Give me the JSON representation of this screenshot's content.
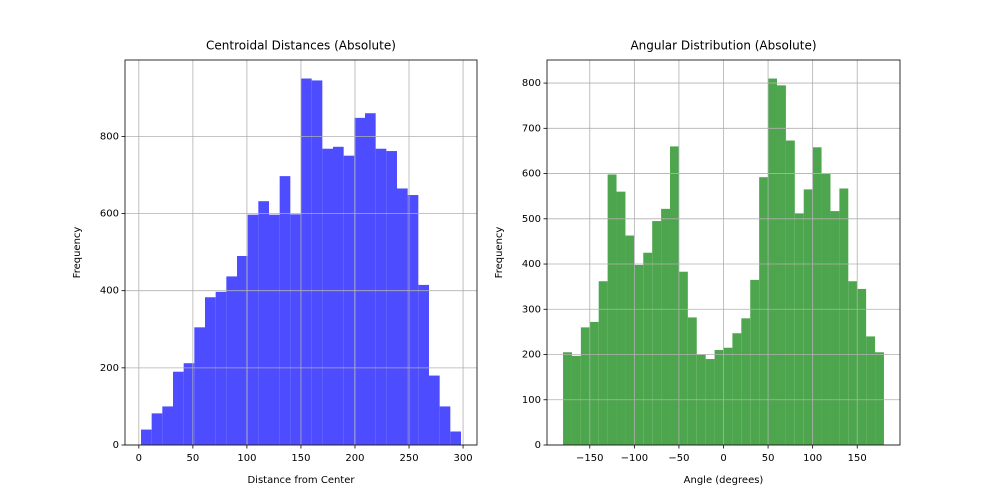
{
  "chart_data": [
    {
      "type": "histogram",
      "title": "Centroidal Distances (Absolute)",
      "xlabel": "Distance from Center",
      "ylabel": "Frequency",
      "bins": [
        2,
        11.87,
        21.74,
        31.61,
        41.48,
        51.35,
        61.22,
        71.09,
        80.96,
        90.83,
        100.7,
        110.57,
        120.44,
        130.31,
        140.18,
        150.05,
        159.92,
        169.79,
        179.66,
        189.53,
        199.4,
        209.27,
        219.14,
        229.01,
        238.88,
        248.75,
        258.62,
        268.49,
        278.36,
        288.23,
        298.1
      ],
      "values": [
        40,
        82,
        100,
        190,
        212,
        305,
        383,
        397,
        437,
        490,
        597,
        632,
        597,
        697,
        598,
        950,
        945,
        768,
        773,
        750,
        848,
        860,
        768,
        762,
        665,
        648,
        415,
        180,
        100,
        35
      ],
      "color": "#4d4dff",
      "xlim": [
        -12.8,
        312.9
      ],
      "ylim": [
        0,
        998
      ],
      "xticks": [
        0,
        50,
        100,
        150,
        200,
        250,
        300
      ],
      "yticks": [
        0,
        200,
        400,
        600,
        800
      ],
      "grid": true
    },
    {
      "type": "histogram",
      "title": "Angular Distribution (Absolute)",
      "xlabel": "Angle (degrees)",
      "ylabel": "Frequency",
      "bins": [
        -180,
        -170,
        -160,
        -150,
        -140,
        -130,
        -120,
        -110,
        -100,
        -90,
        -80,
        -70,
        -60,
        -50,
        -40,
        -30,
        -20,
        -10,
        0,
        10,
        20,
        30,
        40,
        50,
        60,
        70,
        80,
        90,
        100,
        110,
        120,
        130,
        140,
        150,
        160,
        170,
        180
      ],
      "values": [
        205,
        197,
        260,
        272,
        362,
        598,
        560,
        463,
        398,
        425,
        495,
        522,
        660,
        383,
        282,
        200,
        190,
        210,
        215,
        247,
        280,
        365,
        592,
        810,
        795,
        673,
        512,
        565,
        658,
        600,
        517,
        567,
        362,
        345,
        240,
        205
      ],
      "color": "#4da64d",
      "xlim": [
        -198,
        198
      ],
      "ylim": [
        0,
        851
      ],
      "xticks": [
        {
          "value": -150,
          "label": "−150"
        },
        {
          "value": -100,
          "label": "−100"
        },
        {
          "value": -50,
          "label": "−50"
        },
        0,
        50,
        100,
        150
      ],
      "yticks": [
        0,
        100,
        200,
        300,
        400,
        500,
        600,
        700,
        800
      ],
      "grid": true
    }
  ]
}
